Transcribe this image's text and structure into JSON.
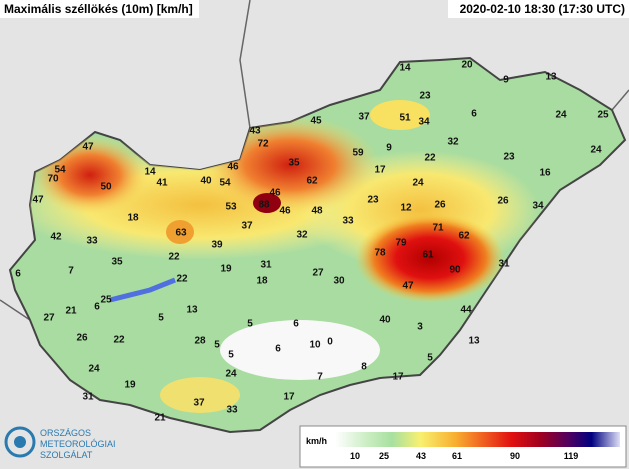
{
  "title": "Maximális széllökés (10m) [km/h]",
  "timestamp": "2020-02-10 18:30 (17:30 UTC)",
  "logo": {
    "lines": [
      "ORSZÁGOS",
      "METEOROLÓGIAI",
      "SZOLGÁLAT"
    ]
  },
  "legend": {
    "unit": "km/h",
    "ticks": [
      10,
      25,
      43,
      61,
      90,
      119
    ]
  },
  "stations": [
    54,
    70,
    47,
    50,
    47,
    14,
    41,
    40,
    54,
    46,
    43,
    72,
    45,
    37,
    51,
    34,
    23,
    14,
    20,
    9,
    13,
    6,
    24,
    25,
    24,
    23,
    16,
    32,
    22,
    59,
    9,
    35,
    62,
    17,
    46,
    88,
    46,
    48,
    53,
    24,
    23,
    12,
    26,
    26,
    34,
    18,
    63,
    42,
    33,
    37,
    39,
    33,
    32,
    79,
    71,
    62,
    78,
    61,
    90,
    22,
    35,
    19,
    31,
    27,
    30,
    6,
    7,
    22,
    18,
    31,
    47,
    25,
    6,
    21,
    27,
    5,
    13,
    44,
    40,
    5,
    6,
    3,
    26,
    22,
    28,
    6,
    10,
    0,
    5,
    13,
    5,
    8,
    17,
    24,
    5,
    7,
    19,
    24,
    37,
    33,
    17,
    31,
    21
  ]
}
